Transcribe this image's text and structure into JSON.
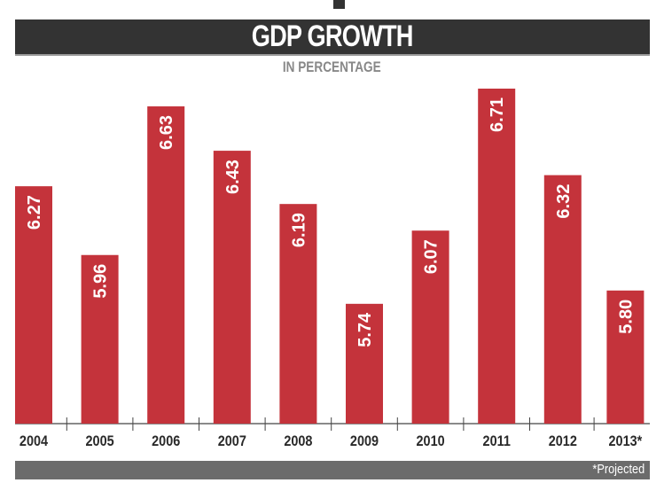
{
  "chart_data": {
    "type": "bar",
    "title": "GDP GROWTH",
    "subtitle": "IN PERCENTAGE",
    "categories": [
      "2004",
      "2005",
      "2006",
      "2007",
      "2008",
      "2009",
      "2010",
      "2011",
      "2012",
      "2013*"
    ],
    "values": [
      6.27,
      5.96,
      6.63,
      6.43,
      6.19,
      5.74,
      6.07,
      6.71,
      6.32,
      5.8
    ],
    "value_labels": [
      "6.27",
      "5.96",
      "6.63",
      "6.43",
      "6.19",
      "5.74",
      "6.07",
      "6.71",
      "6.32",
      "5.80"
    ],
    "xlabel": "",
    "ylabel": "",
    "ylim": [
      5.2,
      6.8
    ],
    "grid": false,
    "footnote": "*Projected",
    "bar_color": "#c4333b"
  }
}
